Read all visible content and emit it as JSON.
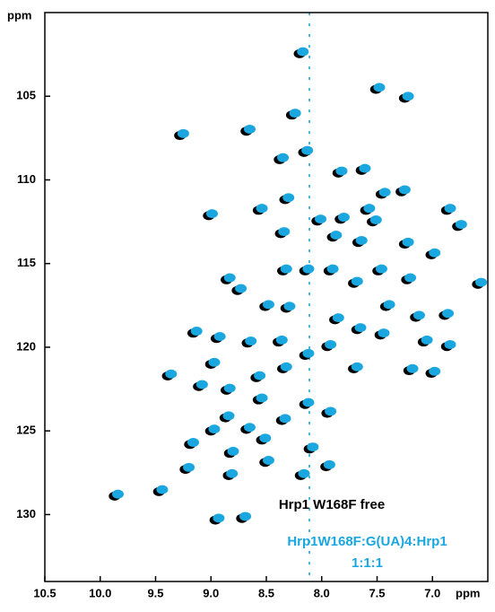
{
  "chart_data": {
    "type": "scatter",
    "x_label": "ppm",
    "y_label": "ppm",
    "xlim": [
      10.5,
      6.5
    ],
    "ylim": [
      134,
      100
    ],
    "xticks": [
      10.5,
      {
        "value": 10,
        "label": "10.0"
      },
      9.5,
      {
        "value": 9,
        "label": "9.0"
      },
      8.5,
      {
        "value": 8,
        "label": "8.0"
      },
      7.5,
      {
        "value": 7,
        "label": "7.0"
      }
    ],
    "yticks": [
      105,
      110,
      115,
      120,
      125,
      130
    ],
    "series": [
      {
        "name": "Hrp1 W168F free",
        "color": "#000000",
        "x": [
          8.2,
          7.51,
          7.25,
          9.28,
          8.68,
          8.27,
          8.16,
          8.38,
          7.85,
          7.64,
          7.28,
          7.46,
          8.33,
          8.57,
          9.02,
          8.04,
          7.83,
          7.6,
          7.54,
          6.87,
          6.77,
          8.37,
          7.9,
          7.67,
          7.25,
          7.01,
          6.59,
          8.86,
          8.76,
          8.35,
          8.15,
          7.93,
          7.49,
          7.71,
          7.23,
          8.51,
          8.32,
          7.88,
          7.68,
          7.42,
          7.15,
          6.89,
          9.16,
          8.95,
          8.67,
          8.39,
          8.15,
          7.95,
          7.47,
          7.08,
          6.87,
          9.39,
          9.0,
          8.59,
          8.35,
          7.71,
          7.21,
          7.01,
          9.11,
          8.86,
          8.57,
          8.15,
          8.87,
          9.0,
          8.68,
          8.36,
          7.95,
          9.19,
          8.54,
          8.11,
          8.83,
          8.51,
          8.84,
          9.23,
          9.47,
          9.87,
          8.96,
          8.72,
          7.96,
          8.19
        ],
        "y": [
          102.46,
          104.59,
          105.12,
          107.35,
          107.09,
          106.13,
          108.36,
          108.79,
          109.59,
          109.43,
          110.71,
          110.86,
          111.18,
          111.82,
          112.14,
          112.46,
          112.35,
          111.82,
          112.51,
          111.82,
          112.78,
          113.21,
          113.42,
          113.74,
          113.84,
          114.48,
          116.24,
          115.97,
          116.61,
          115.44,
          115.44,
          115.44,
          115.44,
          116.18,
          115.97,
          117.57,
          117.67,
          118.36,
          118.95,
          117.57,
          118.21,
          118.1,
          119.16,
          119.48,
          119.75,
          119.69,
          120.49,
          119.96,
          119.27,
          119.69,
          119.96,
          121.72,
          121.02,
          121.82,
          121.29,
          121.29,
          121.4,
          121.56,
          122.35,
          122.57,
          123.15,
          123.42,
          124.22,
          125.01,
          124.91,
          124.38,
          123.95,
          125.81,
          125.55,
          126.08,
          126.34,
          126.88,
          127.67,
          127.3,
          128.63,
          128.9,
          130.33,
          130.23,
          127.14,
          127.67
        ]
      },
      {
        "name": "Hrp1W168F:G(UA)4:Hrp1 1:1:1",
        "color": "#1aa7e0",
        "x": [
          8.17,
          7.48,
          7.22,
          9.25,
          8.65,
          8.24,
          8.13,
          8.35,
          7.82,
          7.61,
          7.25,
          7.43,
          8.3,
          8.54,
          8.99,
          8.01,
          7.8,
          7.57,
          7.51,
          6.84,
          6.74,
          8.34,
          7.87,
          7.64,
          7.22,
          6.98,
          6.56,
          8.83,
          8.73,
          8.32,
          8.12,
          7.9,
          7.46,
          7.68,
          7.2,
          8.48,
          8.29,
          7.85,
          7.65,
          7.39,
          7.12,
          6.86,
          9.13,
          8.92,
          8.64,
          8.36,
          8.12,
          7.92,
          7.44,
          7.05,
          6.84,
          9.36,
          8.97,
          8.56,
          8.32,
          7.68,
          7.18,
          6.98,
          9.08,
          8.83,
          8.54,
          8.12,
          8.84,
          8.97,
          8.65,
          8.33,
          7.92,
          9.16,
          8.51,
          8.08,
          8.8,
          8.48,
          8.81,
          9.2,
          9.44,
          9.84,
          8.93,
          8.69,
          7.93,
          8.16
        ],
        "y": [
          102.34,
          104.47,
          105.0,
          107.23,
          106.97,
          106.01,
          108.24,
          108.67,
          109.47,
          109.31,
          110.59,
          110.74,
          111.06,
          111.7,
          112.02,
          112.34,
          112.23,
          111.7,
          112.39,
          111.7,
          112.66,
          113.09,
          113.3,
          113.62,
          113.72,
          114.36,
          116.12,
          115.85,
          116.49,
          115.32,
          115.32,
          115.32,
          115.32,
          116.06,
          115.85,
          117.45,
          117.55,
          118.24,
          118.83,
          117.45,
          118.09,
          117.98,
          119.04,
          119.36,
          119.63,
          119.57,
          120.37,
          119.84,
          119.15,
          119.57,
          119.84,
          121.6,
          120.9,
          121.7,
          121.17,
          121.17,
          121.28,
          121.44,
          122.23,
          122.45,
          123.03,
          123.3,
          124.1,
          124.89,
          124.79,
          124.26,
          123.83,
          125.69,
          125.43,
          125.96,
          126.22,
          126.76,
          127.55,
          127.18,
          128.51,
          128.78,
          130.21,
          130.11,
          127.02,
          127.55
        ]
      }
    ]
  }
}
